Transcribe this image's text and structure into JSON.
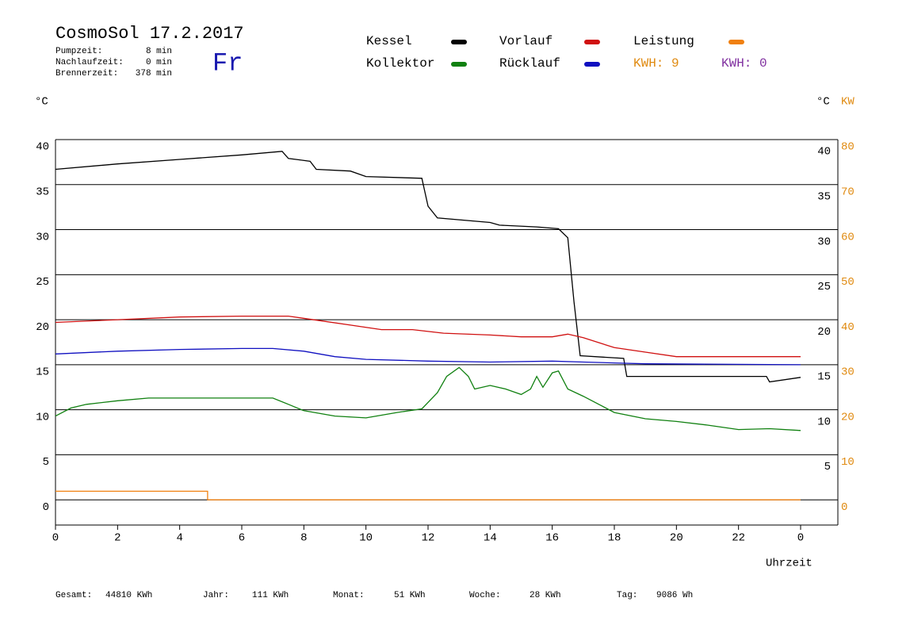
{
  "chart_data": {
    "type": "line",
    "title": "CosmoSol 17.2.2017",
    "info": [
      "Pumpzeit:",
      "8 min",
      "Nachlaufzeit:",
      "0 min",
      "Brennerzeit:",
      "378 min"
    ],
    "day": "Fr",
    "kwh_labels": [
      {
        "text": "KWH: 9",
        "color": "#e08a10"
      },
      {
        "text": "KWH: 0",
        "color": "#8030a0"
      }
    ],
    "y_unit": "°C",
    "y2_unit_c": "°C",
    "y2_unit": "KW",
    "xlabel": "Uhrzeit",
    "footer": [
      "Gesamt:",
      "44810 KWh",
      "Jahr:",
      "111 KWh",
      "Monat:",
      "51 KWh",
      "Woche:",
      "28 KWh",
      "Tag:",
      "9086 Wh"
    ],
    "xlim": [
      0,
      25.2
    ],
    "xticks": [
      0,
      2,
      4,
      6,
      8,
      10,
      12,
      14,
      16,
      18,
      20,
      22,
      {
        "value": 24,
        "label": "0"
      }
    ],
    "ylim": [
      -2.8,
      40
    ],
    "yticks": [
      0,
      5,
      10,
      15,
      20,
      25,
      30,
      35,
      40
    ],
    "yticks_right": [
      5,
      10,
      15,
      20,
      25,
      30,
      35,
      40
    ],
    "y2lim": [
      -5.6,
      80
    ],
    "y2ticks": [
      0,
      10,
      20,
      30,
      40,
      50,
      60,
      70,
      80
    ],
    "grid": true,
    "series": [
      {
        "name": "Kessel",
        "color": "#000000",
        "x": [
          0,
          2,
          4,
          6,
          7.3,
          7.5,
          8.2,
          8.4,
          9.5,
          10,
          11.8,
          12,
          12.3,
          14,
          14.3,
          15.5,
          16.2,
          16.5,
          16.7,
          16.9,
          18.3,
          18.4,
          22.9,
          23,
          24
        ],
        "values": [
          36.7,
          37.3,
          37.8,
          38.3,
          38.7,
          37.9,
          37.6,
          36.7,
          36.5,
          35.9,
          35.7,
          32.6,
          31.3,
          30.8,
          30.5,
          30.3,
          30.1,
          29.1,
          22.0,
          16.0,
          15.7,
          13.7,
          13.7,
          13.1,
          13.6
        ]
      },
      {
        "name": "Vorlauf",
        "color": "#d01010",
        "x": [
          0,
          2,
          4,
          6,
          7.5,
          8.5,
          9.5,
          10.5,
          11.5,
          12.5,
          14,
          15,
          16,
          16.5,
          17,
          18,
          19,
          20,
          22,
          24
        ],
        "values": [
          19.7,
          20.0,
          20.3,
          20.4,
          20.4,
          19.9,
          19.4,
          18.9,
          18.9,
          18.5,
          18.3,
          18.1,
          18.1,
          18.4,
          18.0,
          16.9,
          16.4,
          15.9,
          15.9,
          15.9
        ]
      },
      {
        "name": "Leistung",
        "color": "#f08010",
        "axis": "y2",
        "x": [
          0,
          4.9,
          4.9,
          24
        ],
        "values": [
          1.9,
          1.9,
          0,
          0
        ]
      },
      {
        "name": "Kollektor",
        "color": "#108010",
        "x": [
          0,
          0.5,
          1,
          2,
          3,
          5,
          7,
          7.5,
          8,
          9,
          10,
          11,
          11.8,
          12.3,
          12.6,
          13,
          13.3,
          13.5,
          14,
          14.5,
          15,
          15.3,
          15.5,
          15.7,
          16,
          16.2,
          16.5,
          17,
          17.5,
          18,
          19,
          20,
          21,
          22,
          23,
          24
        ],
        "values": [
          9.3,
          10.2,
          10.6,
          11.0,
          11.3,
          11.3,
          11.3,
          10.6,
          9.9,
          9.3,
          9.1,
          9.7,
          10.1,
          11.9,
          13.7,
          14.7,
          13.7,
          12.3,
          12.7,
          12.3,
          11.7,
          12.3,
          13.7,
          12.5,
          14.1,
          14.3,
          12.3,
          11.5,
          10.6,
          9.7,
          9.0,
          8.7,
          8.3,
          7.8,
          7.9,
          7.7
        ]
      },
      {
        "name": "Rücklauf",
        "color": "#1010c0",
        "x": [
          0,
          2,
          4,
          6,
          7,
          8,
          9,
          10,
          12,
          14,
          16,
          17,
          18,
          19,
          24
        ],
        "values": [
          16.2,
          16.5,
          16.7,
          16.8,
          16.8,
          16.5,
          15.9,
          15.6,
          15.4,
          15.3,
          15.4,
          15.3,
          15.2,
          15.1,
          15.0
        ]
      }
    ]
  }
}
